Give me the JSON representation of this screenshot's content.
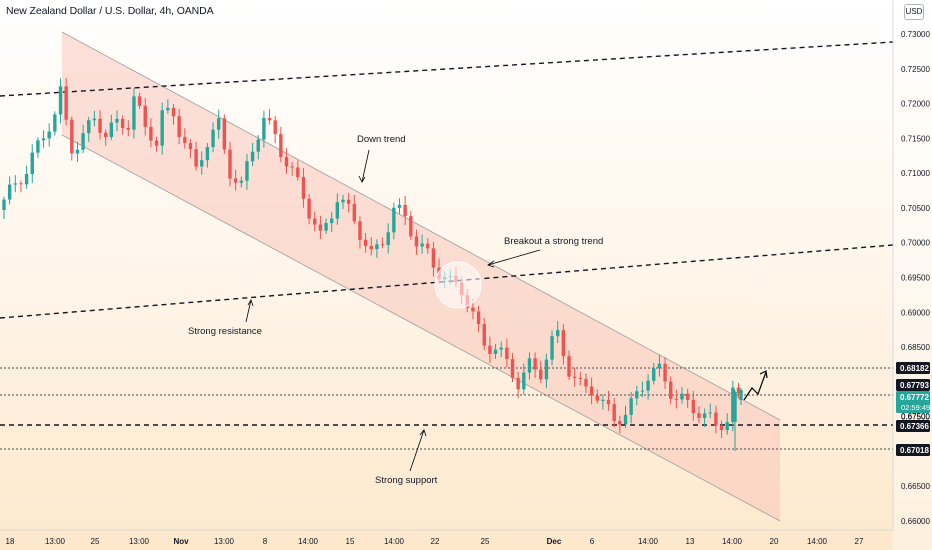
{
  "header": {
    "title": "New Zealand Dollar / U.S. Dollar, 4h, OANDA",
    "currency_badge": "USD"
  },
  "colors": {
    "up": "#26a69a",
    "down": "#ef5350",
    "channel_fill": "#f8c7bb",
    "channel_edge": "#9e9e9e",
    "line": "#131722",
    "dotted": "#4a4a4a",
    "price_tag": "#131722",
    "live_tag": "#26a69a"
  },
  "chart_data": {
    "type": "candlestick",
    "title": "New Zealand Dollar / U.S. Dollar, 4h, OANDA",
    "ylim": [
      0.6585,
      0.734
    ],
    "yticks": [
      "0.73000",
      "0.72500",
      "0.72000",
      "0.71500",
      "0.71000",
      "0.70500",
      "0.70000",
      "0.69500",
      "0.69000",
      "0.68500",
      "0.68000",
      "0.67500",
      "0.67000",
      "0.66500",
      "0.66000"
    ],
    "xticks": [
      "18",
      "13:00",
      "25",
      "13:00",
      "Nov",
      "13:00",
      "8",
      "14:00",
      "15",
      "14:00",
      "22",
      "25",
      "Dec",
      "6",
      "14:00",
      "13",
      "14:00",
      "20",
      "14:00",
      "27"
    ],
    "price_path": [
      [
        0,
        0.7055
      ],
      [
        2,
        0.708
      ],
      [
        5,
        0.713
      ],
      [
        7,
        0.715
      ],
      [
        9,
        0.718
      ],
      [
        10,
        0.721
      ],
      [
        11,
        0.717
      ],
      [
        12,
        0.714
      ],
      [
        14,
        0.716
      ],
      [
        16,
        0.7175
      ],
      [
        18,
        0.715
      ],
      [
        20,
        0.717
      ],
      [
        22,
        0.718
      ],
      [
        23,
        0.7215
      ],
      [
        25,
        0.716
      ],
      [
        27,
        0.714
      ],
      [
        28,
        0.718
      ],
      [
        30,
        0.719
      ],
      [
        32,
        0.715
      ],
      [
        34,
        0.71
      ],
      [
        36,
        0.714
      ],
      [
        38,
        0.717
      ],
      [
        40,
        0.711
      ],
      [
        42,
        0.708
      ],
      [
        44,
        0.713
      ],
      [
        46,
        0.7175
      ],
      [
        48,
        0.716
      ],
      [
        50,
        0.712
      ],
      [
        52,
        0.708
      ],
      [
        54,
        0.704
      ],
      [
        56,
        0.701
      ],
      [
        58,
        0.705
      ],
      [
        59,
        0.707
      ],
      [
        61,
        0.704
      ],
      [
        63,
        0.701
      ],
      [
        65,
        0.6985
      ],
      [
        67,
        0.701
      ],
      [
        69,
        0.7045
      ],
      [
        71,
        0.703
      ],
      [
        73,
        0.7
      ],
      [
        75,
        0.699
      ],
      [
        77,
        0.696
      ],
      [
        79,
        0.6935
      ],
      [
        81,
        0.693
      ],
      [
        83,
        0.69
      ],
      [
        85,
        0.686
      ],
      [
        87,
        0.6845
      ],
      [
        89,
        0.682
      ],
      [
        91,
        0.68
      ],
      [
        93,
        0.683
      ],
      [
        95,
        0.6815
      ],
      [
        97,
        0.685
      ],
      [
        98,
        0.686
      ],
      [
        100,
        0.682
      ],
      [
        102,
        0.68
      ],
      [
        104,
        0.679
      ],
      [
        106,
        0.676
      ],
      [
        108,
        0.6745
      ],
      [
        110,
        0.676
      ],
      [
        112,
        0.6785
      ],
      [
        114,
        0.6805
      ],
      [
        116,
        0.681
      ],
      [
        118,
        0.679
      ],
      [
        120,
        0.678
      ],
      [
        122,
        0.676
      ],
      [
        124,
        0.6745
      ],
      [
        126,
        0.6735
      ],
      [
        128,
        0.6755
      ],
      [
        129,
        0.679
      ],
      [
        130,
        0.6777
      ]
    ],
    "levels": {
      "top_tag": "0.68182",
      "p1": "0.67793",
      "live": "0.67772",
      "countdown": "02:59:49",
      "p2": "0.67500",
      "support": "0.67366",
      "low": "0.67018"
    },
    "annotations": {
      "down_trend": "Down trend",
      "breakout": "Breakout a strong trend",
      "resistance": "Strong resistance",
      "support": "Strong support"
    }
  }
}
